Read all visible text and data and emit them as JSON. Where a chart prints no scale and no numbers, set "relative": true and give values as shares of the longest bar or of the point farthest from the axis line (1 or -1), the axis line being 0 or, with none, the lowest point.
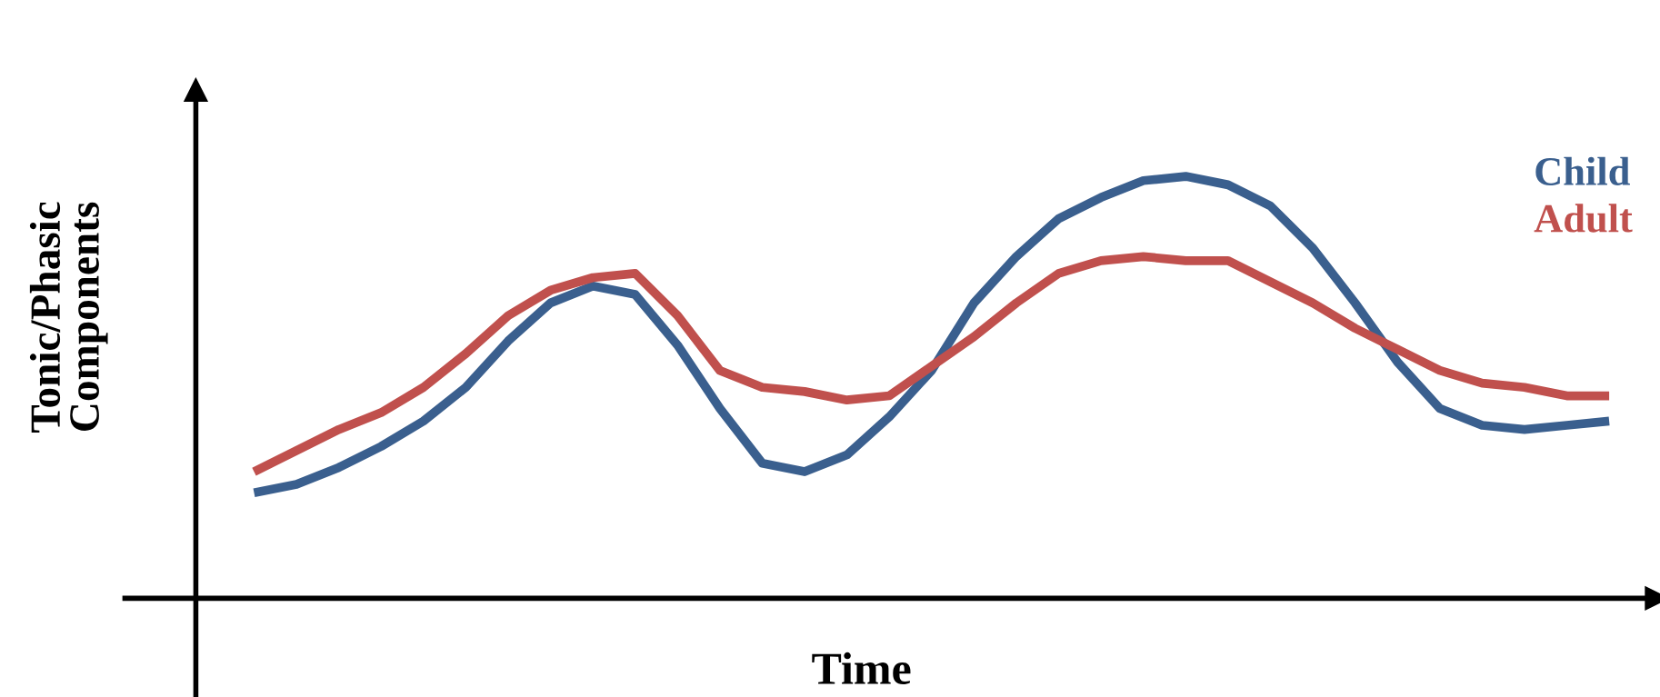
{
  "chart_data": {
    "type": "line",
    "relative": true,
    "xlabel": "Time",
    "ylabel": "Tonic/Phasic\nComponents",
    "legend": "top right",
    "categories": [
      null,
      null,
      null,
      null,
      null,
      null,
      null,
      null,
      null,
      null,
      null,
      null,
      null,
      null,
      null,
      null,
      null,
      null,
      null,
      null,
      null,
      null,
      null,
      null,
      null,
      null,
      null,
      null,
      null,
      null,
      null,
      null,
      null
    ],
    "series": [
      {
        "name": "Child",
        "color": "#3a5f8e",
        "values": [
          0.25,
          0.27,
          0.31,
          0.36,
          0.42,
          0.5,
          0.61,
          0.7,
          0.74,
          0.72,
          0.6,
          0.45,
          0.32,
          0.3,
          0.34,
          0.43,
          0.54,
          0.7,
          0.81,
          0.9,
          0.95,
          0.99,
          1.0,
          0.98,
          0.93,
          0.83,
          0.7,
          0.56,
          0.45,
          0.41,
          0.4,
          0.41,
          0.42
        ]
      },
      {
        "name": "Adult",
        "color": "#c0504d",
        "values": [
          0.3,
          0.35,
          0.4,
          0.44,
          0.5,
          0.58,
          0.67,
          0.73,
          0.76,
          0.77,
          0.67,
          0.54,
          0.5,
          0.49,
          0.47,
          0.48,
          0.55,
          0.62,
          0.7,
          0.77,
          0.8,
          0.81,
          0.8,
          0.8,
          0.75,
          0.7,
          0.64,
          0.59,
          0.54,
          0.51,
          0.5,
          0.48,
          0.48
        ]
      }
    ]
  }
}
